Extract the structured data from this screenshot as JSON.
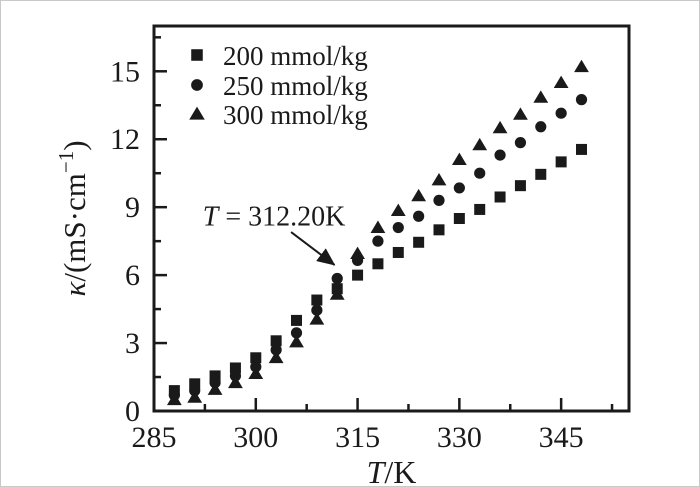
{
  "figure": {
    "background": "#ffffff",
    "ink": "#1a1a1a",
    "page_border": "#c9c9c9"
  },
  "chart_data": {
    "type": "scatter",
    "title": "",
    "xlabel": {
      "italic": "T",
      "rest": "/K",
      "plain": "T/K"
    },
    "ylabel": {
      "italic": "κ",
      "pre": "/(mS·cm",
      "sup": "−1",
      "post": ")",
      "plain": "κ/(mS·cm⁻¹)"
    },
    "xlim": [
      285,
      355
    ],
    "ylim": [
      0,
      17
    ],
    "x_major_ticks": [
      285,
      300,
      315,
      330,
      345
    ],
    "x_minor_ticks": [
      292.5,
      307.5,
      322.5,
      337.5,
      352.5
    ],
    "y_major_ticks": [
      0,
      3,
      6,
      9,
      12,
      15
    ],
    "y_minor_ticks": [
      1.5,
      4.5,
      7.5,
      10.5,
      13.5,
      16.5
    ],
    "grid": false,
    "legend": {
      "position": "top-left",
      "entries": [
        {
          "label": "200 mmol/kg",
          "marker": "square"
        },
        {
          "label": "250 mmol/kg",
          "marker": "circle"
        },
        {
          "label": "300 mmol/kg",
          "marker": "triangle"
        }
      ]
    },
    "x": [
      288,
      291,
      294,
      297,
      300,
      303,
      306,
      309,
      312,
      315,
      318,
      321,
      324,
      327,
      330,
      333,
      336,
      339,
      342,
      345,
      348
    ],
    "series": [
      {
        "name": "200 mmol/kg",
        "marker": "square",
        "values": [
          0.9,
          1.2,
          1.55,
          1.9,
          2.35,
          3.1,
          4.0,
          4.9,
          5.4,
          6.0,
          6.5,
          7.0,
          7.45,
          8.0,
          8.5,
          8.9,
          9.45,
          9.95,
          10.45,
          11.0,
          11.55
        ]
      },
      {
        "name": "250 mmol/kg",
        "marker": "circle",
        "values": [
          0.7,
          0.9,
          1.25,
          1.55,
          1.95,
          2.7,
          3.45,
          4.45,
          5.85,
          6.65,
          7.5,
          8.1,
          8.6,
          9.3,
          9.85,
          10.5,
          11.3,
          11.85,
          12.55,
          13.15,
          13.75
        ]
      },
      {
        "name": "300 mmol/kg",
        "marker": "triangle",
        "values": [
          0.5,
          0.6,
          0.95,
          1.25,
          1.65,
          2.35,
          3.05,
          4.05,
          5.15,
          6.95,
          8.1,
          8.85,
          9.5,
          10.2,
          11.1,
          11.75,
          12.5,
          13.1,
          13.85,
          14.5,
          15.2
        ]
      }
    ],
    "annotation": {
      "text": {
        "italic": "T",
        "rest": " = 312.20K",
        "plain": "T = 312.20K"
      },
      "text_at": [
        302.7,
        8.2
      ],
      "arrow_from": [
        305.2,
        7.9
      ],
      "arrow_to": [
        311.6,
        6.45
      ]
    }
  }
}
